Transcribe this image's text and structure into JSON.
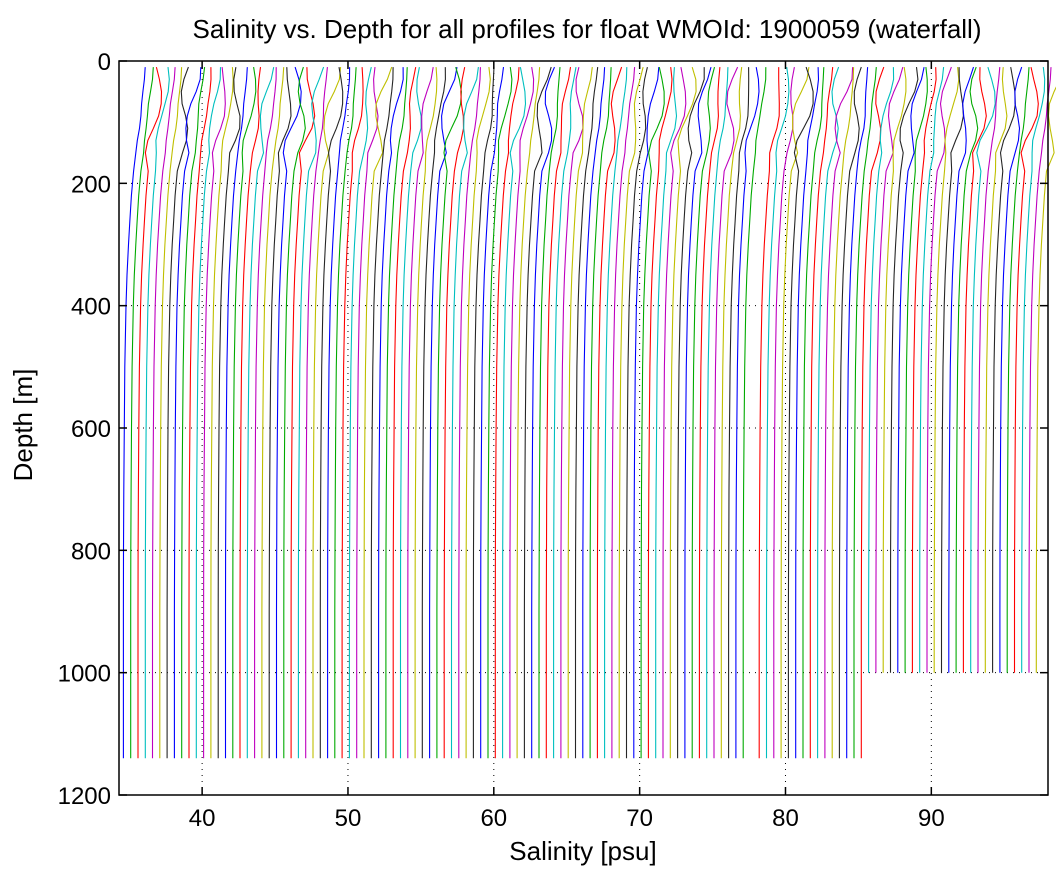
{
  "chart_data": {
    "type": "line",
    "title": "Salinity vs. Depth for all profiles for float WMOId: 1900059 (waterfall)",
    "xlabel": "Salinity [psu]",
    "ylabel": "Depth [m]",
    "xlim": [
      34.3,
      98
    ],
    "ylim": [
      0,
      1200
    ],
    "y_reversed": true,
    "xticks": [
      40,
      50,
      60,
      70,
      80,
      90
    ],
    "yticks": [
      0,
      200,
      400,
      600,
      800,
      1000,
      1200
    ],
    "grid": "dotted",
    "waterfall_offset_psu": 0.5,
    "series_colors": [
      "#0000ff",
      "#00aa00",
      "#ff0000",
      "#00bfbf",
      "#bf00bf",
      "#bfbf00",
      "#262626"
    ],
    "profile_shape": {
      "depth": [
        10,
        30,
        50,
        70,
        90,
        110,
        130,
        150,
        180,
        220,
        260,
        300,
        350,
        400,
        500,
        600,
        700,
        800,
        900,
        1000,
        1100,
        1140
      ],
      "salinity_base": [
        36.1,
        36.05,
        35.95,
        35.85,
        35.8,
        35.7,
        35.55,
        35.45,
        35.3,
        35.15,
        35.05,
        34.95,
        34.85,
        34.78,
        34.7,
        34.66,
        34.63,
        34.61,
        34.6,
        34.6,
        34.6,
        34.6
      ]
    },
    "profile_count": 125,
    "first_profile_start_psu": 34.6,
    "notes_gap_after_psu": 77.5
  }
}
